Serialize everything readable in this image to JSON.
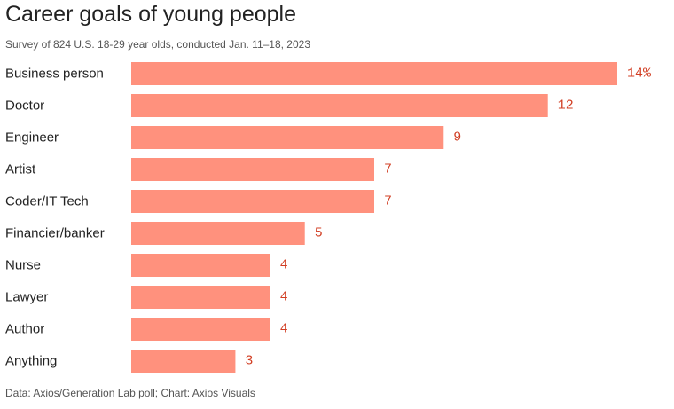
{
  "chart_data": {
    "type": "bar",
    "orientation": "horizontal",
    "title": "Career goals of young people",
    "subtitle": "Survey of 824 U.S. 18-29 year olds, conducted Jan. 11–18, 2023",
    "source": "Data: Axios/Generation Lab poll; Chart: Axios Visuals",
    "categories": [
      "Business person",
      "Doctor",
      "Engineer",
      "Artist",
      "Coder/IT Tech",
      "Financier/banker",
      "Nurse",
      "Lawyer",
      "Author",
      "Anything"
    ],
    "values": [
      14,
      12,
      9,
      7,
      7,
      5,
      4,
      4,
      4,
      3
    ],
    "value_labels": [
      "14%",
      "12",
      "9",
      "7",
      "7",
      "5",
      "4",
      "4",
      "4",
      "3"
    ],
    "xlim": [
      0,
      14
    ],
    "grid": false,
    "colors": {
      "bar": "#ff917d",
      "value_label": "#d13d22"
    }
  }
}
